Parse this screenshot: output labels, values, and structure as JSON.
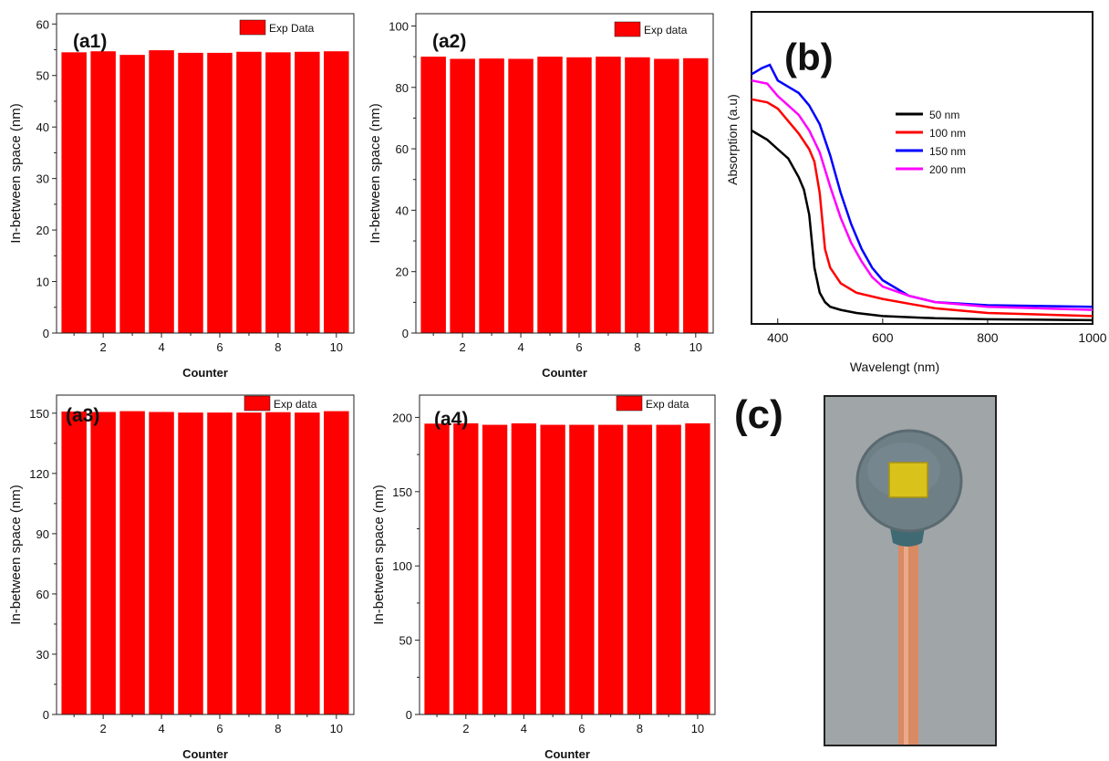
{
  "colors": {
    "bar_fill": "#ff0000",
    "axis": "#222222",
    "photo_background": "#9aa0a4",
    "photo_disc": "#6f7f86",
    "photo_square": "#d9c21a",
    "photo_strip": "#d98a62"
  },
  "panel_c": {
    "label": "(c)"
  },
  "chart_data": [
    {
      "id": "a1",
      "type": "bar",
      "panel_label": "(a1)",
      "legend": "Exp Data",
      "legend_position": "top-right",
      "xlabel": "Counter",
      "ylabel": "In-between space (nm)",
      "x": [
        1,
        2,
        3,
        4,
        5,
        6,
        7,
        8,
        9,
        10
      ],
      "values": [
        54.5,
        54.7,
        54.0,
        54.9,
        54.4,
        54.4,
        54.6,
        54.5,
        54.6,
        54.7
      ],
      "xticks": [
        2,
        4,
        6,
        8,
        10
      ],
      "yticks": [
        0,
        10,
        20,
        30,
        40,
        50,
        60
      ],
      "ylim": [
        0,
        62
      ],
      "xlim": [
        0.4,
        10.6
      ]
    },
    {
      "id": "a2",
      "type": "bar",
      "panel_label": "(a2)",
      "legend": "Exp data",
      "legend_position": "top-right",
      "xlabel": "Counter",
      "ylabel": "In-between space (nm)",
      "x": [
        1,
        2,
        3,
        4,
        5,
        6,
        7,
        8,
        9,
        10
      ],
      "values": [
        90.0,
        89.3,
        89.4,
        89.3,
        90.0,
        89.8,
        90.0,
        89.8,
        89.3,
        89.5
      ],
      "xticks": [
        2,
        4,
        6,
        8,
        10
      ],
      "yticks": [
        0,
        20,
        40,
        60,
        80,
        100
      ],
      "ylim": [
        0,
        104
      ],
      "xlim": [
        0.4,
        10.6
      ]
    },
    {
      "id": "a3",
      "type": "bar",
      "panel_label": "(a3)",
      "legend": "Exp data",
      "legend_position": "top-right",
      "xlabel": "Counter",
      "ylabel": "In-between space (nm)",
      "x": [
        1,
        2,
        3,
        4,
        5,
        6,
        7,
        8,
        9,
        10
      ],
      "values": [
        150.8,
        150.6,
        151.0,
        150.6,
        150.3,
        150.3,
        150.3,
        150.5,
        150.3,
        151.0
      ],
      "xticks": [
        2,
        4,
        6,
        8,
        10
      ],
      "yticks": [
        0,
        30,
        60,
        90,
        120,
        150
      ],
      "ylim": [
        0,
        159
      ],
      "xlim": [
        0.4,
        10.6
      ]
    },
    {
      "id": "a4",
      "type": "bar",
      "panel_label": "(a4)",
      "legend": "Exp data",
      "legend_position": "top-right",
      "xlabel": "Counter",
      "ylabel": "In-between space (nm)",
      "x": [
        1,
        2,
        3,
        4,
        5,
        6,
        7,
        8,
        9,
        10
      ],
      "values": [
        195.8,
        196.0,
        195.0,
        196.0,
        195.0,
        195.0,
        195.0,
        195.0,
        195.0,
        196.0
      ],
      "xticks": [
        2,
        4,
        6,
        8,
        10
      ],
      "yticks": [
        0,
        50,
        100,
        150,
        200
      ],
      "ylim": [
        0,
        215
      ],
      "xlim": [
        0.4,
        10.6
      ]
    },
    {
      "id": "b",
      "type": "line",
      "panel_label": "(b)",
      "xlabel": "Wavelengt (nm)",
      "ylabel": "Absorption (a.u)",
      "xlim": [
        350,
        1000
      ],
      "ylim": [
        0,
        1
      ],
      "xticks": [
        400,
        600,
        800,
        1000
      ],
      "yticks_shown": false,
      "legend_position": "top-right",
      "series": [
        {
          "name": "50 nm",
          "color": "#000000",
          "x": [
            350,
            380,
            400,
            420,
            440,
            450,
            460,
            470,
            480,
            490,
            500,
            520,
            550,
            600,
            700,
            800,
            1000
          ],
          "y": [
            0.62,
            0.59,
            0.56,
            0.53,
            0.47,
            0.43,
            0.35,
            0.18,
            0.1,
            0.07,
            0.055,
            0.045,
            0.035,
            0.025,
            0.018,
            0.015,
            0.012
          ]
        },
        {
          "name": "100 nm",
          "color": "#ff0000",
          "x": [
            350,
            380,
            400,
            420,
            440,
            460,
            470,
            480,
            490,
            500,
            520,
            550,
            600,
            650,
            700,
            800,
            1000
          ],
          "y": [
            0.72,
            0.71,
            0.69,
            0.65,
            0.61,
            0.56,
            0.52,
            0.42,
            0.24,
            0.18,
            0.13,
            0.1,
            0.08,
            0.065,
            0.05,
            0.035,
            0.025
          ]
        },
        {
          "name": "150 nm",
          "color": "#0000ff",
          "x": [
            350,
            370,
            385,
            400,
            420,
            440,
            460,
            480,
            500,
            520,
            540,
            560,
            580,
            600,
            650,
            700,
            800,
            1000
          ],
          "y": [
            0.8,
            0.82,
            0.83,
            0.78,
            0.76,
            0.74,
            0.7,
            0.64,
            0.54,
            0.42,
            0.32,
            0.24,
            0.18,
            0.14,
            0.09,
            0.07,
            0.06,
            0.055
          ]
        },
        {
          "name": "200 nm",
          "color": "#ff00ff",
          "x": [
            350,
            380,
            400,
            420,
            440,
            460,
            480,
            500,
            520,
            540,
            560,
            580,
            600,
            650,
            700,
            800,
            1000
          ],
          "y": [
            0.78,
            0.77,
            0.73,
            0.7,
            0.67,
            0.62,
            0.55,
            0.44,
            0.34,
            0.26,
            0.2,
            0.15,
            0.12,
            0.09,
            0.07,
            0.055,
            0.045
          ]
        }
      ]
    }
  ]
}
